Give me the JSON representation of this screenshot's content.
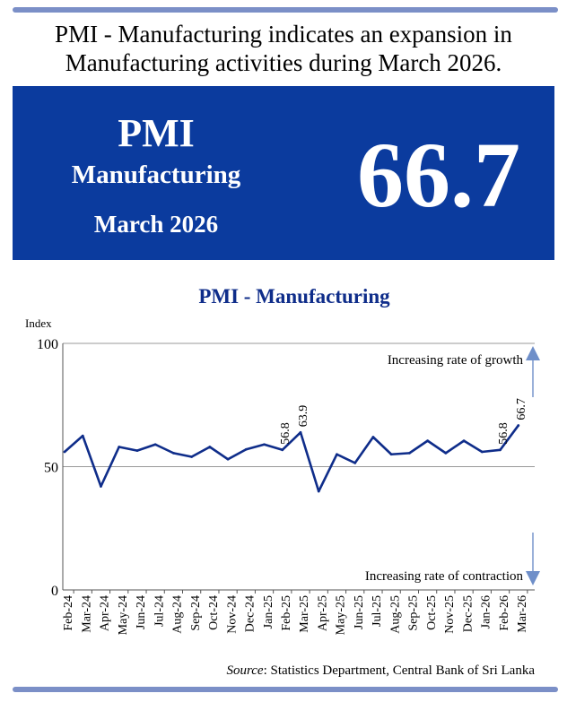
{
  "header": {
    "headline_line1": "PMI - Manufacturing indicates an expansion in",
    "headline_line2": "Manufacturing activities during March 2026."
  },
  "banner": {
    "label_pmi": "PMI",
    "label_sector": "Manufacturing",
    "label_period": "March 2026",
    "value": "66.7"
  },
  "footer": {
    "source_label": "Source",
    "source_text": ": Statistics Department, Central Bank of Sri Lanka"
  },
  "colors": {
    "banner_bg": "#0b3b9e",
    "series_line": "#0f2d8a",
    "arrow": "#6f8fc9",
    "rule": "#7b8fc7"
  },
  "chart_data": {
    "type": "line",
    "title": "PMI - Manufacturing",
    "ylabel": "Index",
    "xlabel": "",
    "ylim": [
      0,
      100
    ],
    "yticks": [
      0,
      50,
      100
    ],
    "grid": true,
    "categories": [
      "Feb-24",
      "Mar-24",
      "Apr-24",
      "May-24",
      "Jun-24",
      "Jul-24",
      "Aug-24",
      "Sep-24",
      "Oct-24",
      "Nov-24",
      "Dec-24",
      "Jan-25",
      "Feb-25",
      "Mar-25",
      "Apr-25",
      "May-25",
      "Jun-25",
      "Jul-25",
      "Aug-25",
      "Sep-25",
      "Oct-25",
      "Nov-25",
      "Dec-25",
      "Jan-26",
      "Feb-26",
      "Mar-26"
    ],
    "series": [
      {
        "name": "PMI - Manufacturing",
        "values": [
          56.0,
          62.5,
          42.0,
          58.0,
          56.5,
          59.0,
          55.5,
          54.0,
          58.0,
          53.0,
          57.0,
          59.0,
          56.8,
          63.9,
          40.0,
          55.0,
          51.5,
          62.0,
          55.0,
          55.5,
          60.5,
          55.5,
          60.5,
          56.0,
          56.8,
          66.7
        ]
      }
    ],
    "data_labels": [
      {
        "index": 12,
        "text": "56.8"
      },
      {
        "index": 13,
        "text": "63.9"
      },
      {
        "index": 24,
        "text": "56.8"
      },
      {
        "index": 25,
        "text": "66.7"
      }
    ],
    "annotations": {
      "growth": "Increasing rate of growth",
      "contraction": "Increasing rate of contraction"
    }
  }
}
